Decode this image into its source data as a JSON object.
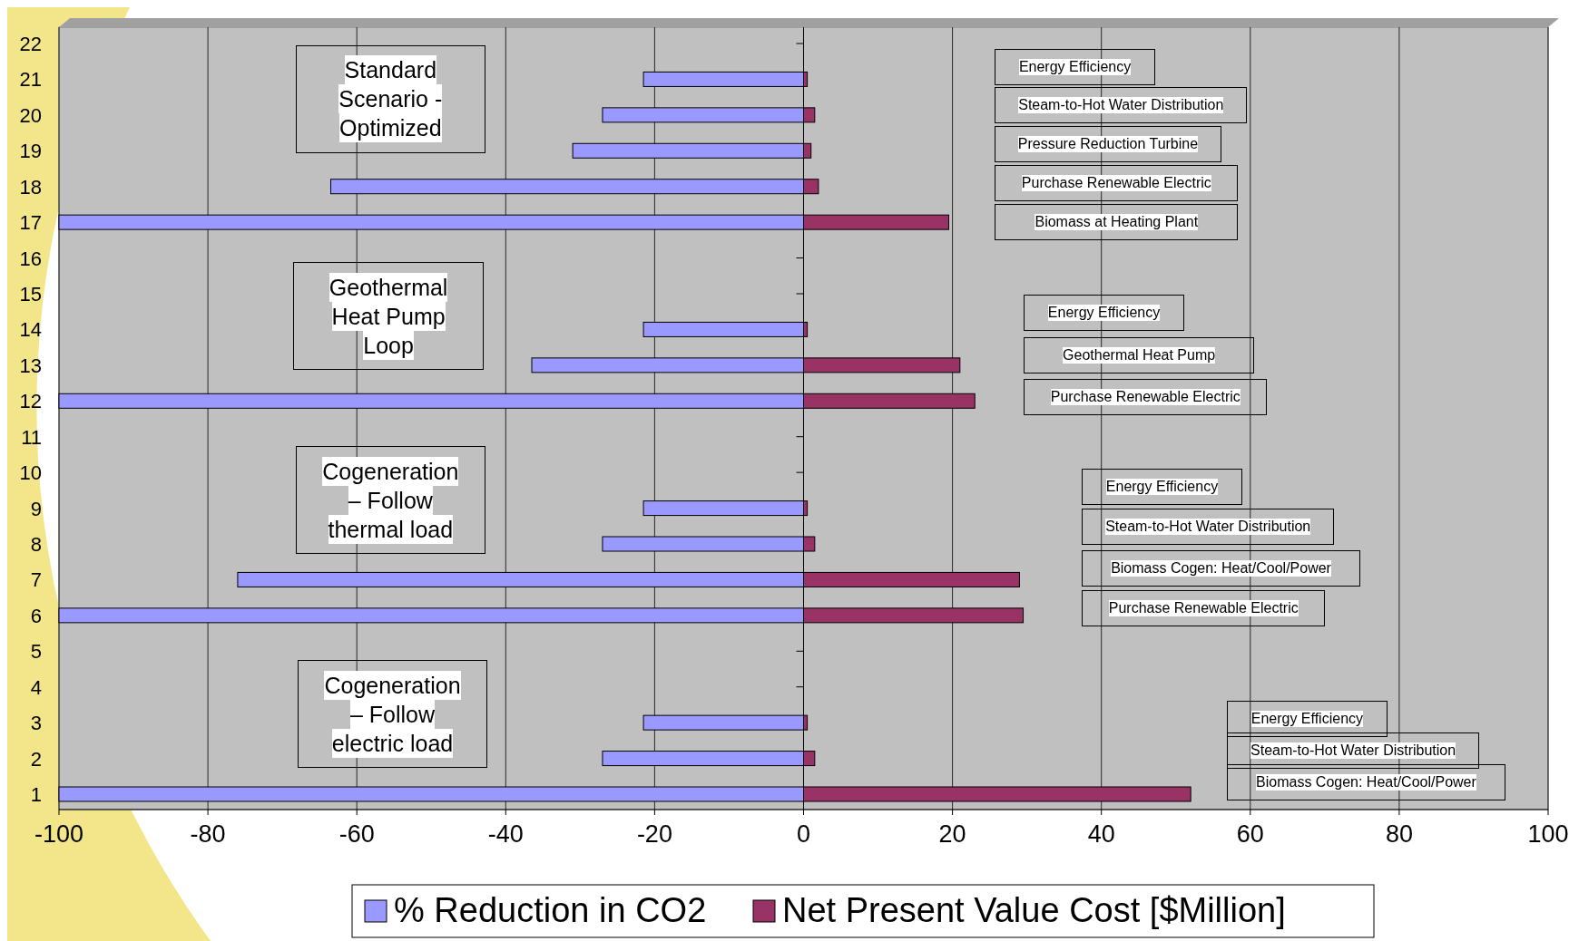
{
  "chart_data": {
    "type": "bar",
    "orientation": "horizontal",
    "categories": [
      "22",
      "21",
      "20",
      "19",
      "18",
      "17",
      "16",
      "15",
      "14",
      "13",
      "12",
      "11",
      "10",
      "9",
      "8",
      "7",
      "6",
      "5",
      "4",
      "3",
      "2",
      "1"
    ],
    "series": [
      {
        "name": "% Reduction in CO2",
        "color": "#9999ff",
        "values": [
          null,
          -21.5,
          -27,
          -31,
          -63.5,
          -100,
          null,
          null,
          -21.5,
          -36.5,
          -100,
          null,
          null,
          -21.5,
          -27,
          -76,
          -100,
          null,
          null,
          -21.5,
          -27,
          -100
        ]
      },
      {
        "name": "Net Present Value Cost [$Million]",
        "color": "#993366",
        "values": [
          null,
          0.5,
          1.5,
          1,
          2,
          19.5,
          null,
          null,
          0.5,
          21,
          23,
          null,
          null,
          0.5,
          1.5,
          29,
          29.5,
          null,
          null,
          0.5,
          1.5,
          52
        ]
      }
    ],
    "stacked": true,
    "xlim": [
      -100,
      100
    ],
    "xticks": [
      -100,
      -80,
      -60,
      -40,
      -20,
      0,
      20,
      40,
      60,
      80,
      100
    ],
    "grid": "x",
    "legend": "bottom",
    "annotations": [
      "Standard Scenario - Optimized",
      "Geothermal Heat Pump Loop",
      "Cogeneration – Follow thermal load",
      "Cogeneration – Follow electric load",
      "Energy Efficiency",
      "Steam-to-Hot Water Distribution",
      "Pressure Reduction Turbine",
      "Purchase Renewable Electric",
      "Biomass at Heating Plant",
      "Energy Efficiency",
      "Geothermal Heat Pump",
      "Purchase Renewable Electric",
      "Energy Efficiency",
      "Steam-to-Hot Water Distribution",
      "Biomass Cogen: Heat/Cool/Power",
      "Purchase Renewable Electric",
      "Energy Efficiency",
      "Steam-to-Hot Water Distribution",
      "Biomass Cogen: Heat/Cool/Power"
    ]
  }
}
